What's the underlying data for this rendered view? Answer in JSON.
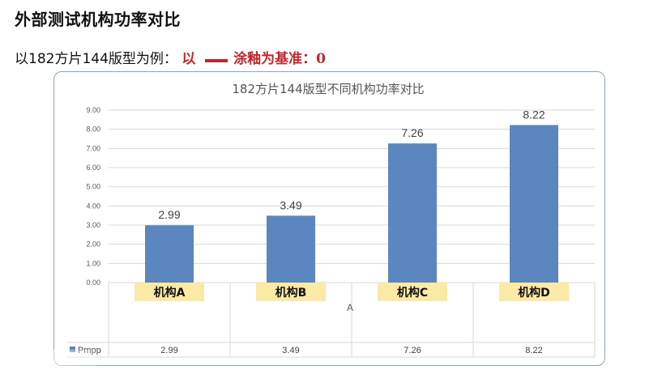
{
  "page": {
    "title": "外部测试机构功率对比",
    "subtitle_prefix": "以182方片144版型为例：",
    "subtitle_highlight": "以",
    "subtitle_highlight_tail": "涂釉为基准：0"
  },
  "colors": {
    "bar": "#5b86c0",
    "category_label_bg": "#fbe9a6",
    "grid": "#d9d9d9",
    "card_border": "#8aa6bd",
    "highlight_text": "#c0272d"
  },
  "chart_data": {
    "type": "bar",
    "title": "182方片144版型不同机构功率对比",
    "categories": [
      "机构A",
      "机构B",
      "机构C",
      "机构D"
    ],
    "series": [
      {
        "name": "Pmpp",
        "values": [
          2.99,
          3.49,
          7.26,
          8.22
        ]
      }
    ],
    "xlabel": "A",
    "ylabel": "",
    "ylim": [
      0,
      9
    ],
    "yticks": [
      "0.00",
      "1.00",
      "2.00",
      "3.00",
      "4.00",
      "5.00",
      "6.00",
      "7.00",
      "8.00",
      "9.00"
    ],
    "data_labels": [
      "2.99",
      "3.49",
      "7.26",
      "8.22"
    ],
    "table_row_label": "Pmpp",
    "table_values": [
      "2.99",
      "3.49",
      "7.26",
      "8.22"
    ],
    "grid": true
  }
}
